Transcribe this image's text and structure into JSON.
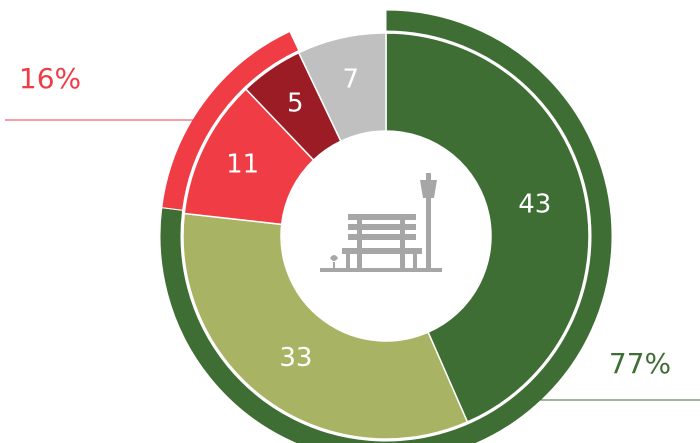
{
  "chart_data": {
    "type": "donut",
    "rings": [
      {
        "values": [
          77,
          16
        ],
        "value_labels": [
          "77%",
          "16%"
        ],
        "colors": [
          "#3f6e35",
          "#f03c44"
        ]
      },
      {
        "values": [
          43,
          33,
          11,
          5,
          7
        ],
        "colors": [
          "#3f6e35",
          "#a8b464",
          "#f03c44",
          "#9b1c24",
          "#c0c0c0"
        ]
      }
    ]
  }
}
